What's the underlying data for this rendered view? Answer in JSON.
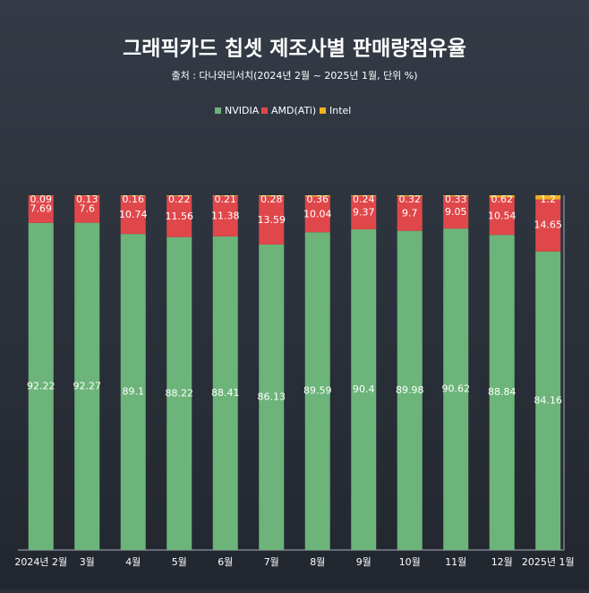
{
  "chart_data": {
    "type": "stacked_bar",
    "title": "그래픽카드 칩셋 제조사별 판매량점유율",
    "subtitle": "출처 : 다나와리서치(2024년 2월 ~ 2025년 1월, 단위 %)",
    "categories": [
      "2024년 2월",
      "3월",
      "4월",
      "5월",
      "6월",
      "7월",
      "8월",
      "9월",
      "10월",
      "11월",
      "12월",
      "2025년 1월"
    ],
    "series": [
      {
        "name": "NVIDIA",
        "color": "#6cb47a",
        "values": [
          92.22,
          92.27,
          89.1,
          88.22,
          88.41,
          86.13,
          89.59,
          90.4,
          89.98,
          90.62,
          88.84,
          84.16
        ]
      },
      {
        "name": "AMD(ATi)",
        "color": "#e0474a",
        "values": [
          7.69,
          7.6,
          10.74,
          11.56,
          11.38,
          13.59,
          10.04,
          9.37,
          9.7,
          9.05,
          10.54,
          14.65
        ]
      },
      {
        "name": "Intel",
        "color": "#f1b11f",
        "values": [
          0.09,
          0.13,
          0.16,
          0.22,
          0.21,
          0.28,
          0.36,
          0.24,
          0.32,
          0.33,
          0.62,
          1.2
        ]
      }
    ],
    "ylim": [
      0,
      100
    ]
  }
}
